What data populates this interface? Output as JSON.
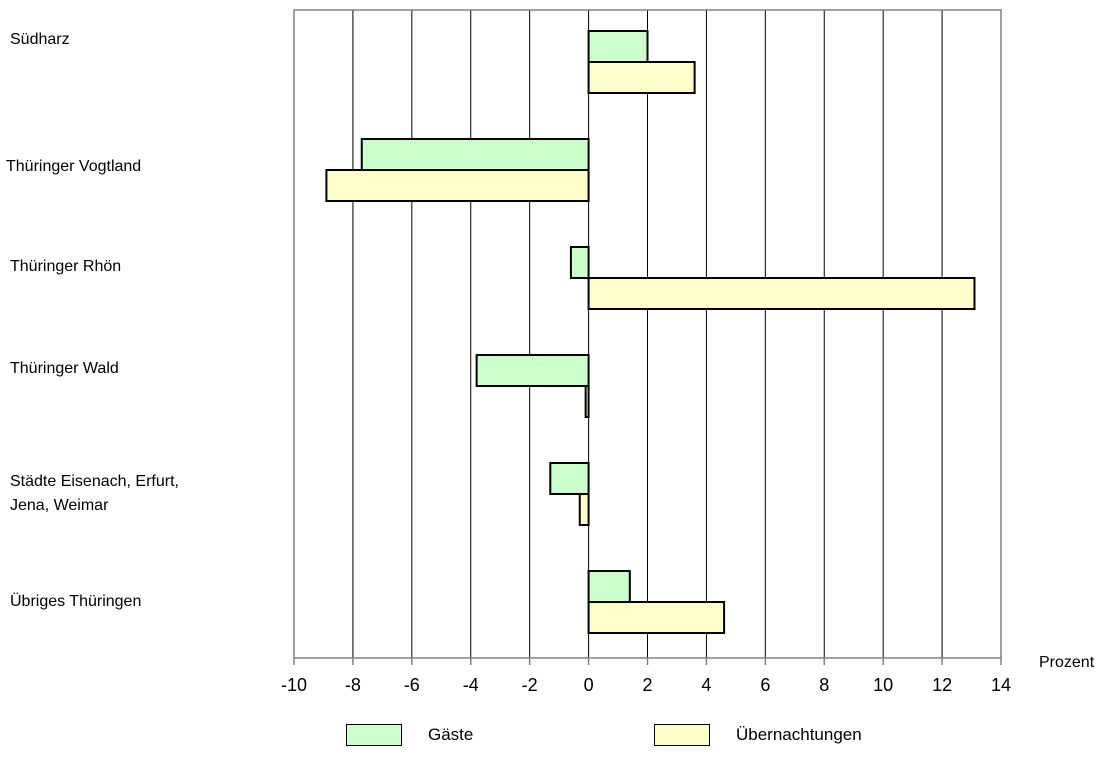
{
  "chart_data": {
    "type": "bar",
    "orientation": "horizontal",
    "categories": [
      "Südharz",
      "Thüringer Vogtland",
      "Thüringer Rhön",
      "Thüringer Wald",
      "Städte Eisenach, Erfurt,\nJena, Weimar",
      "Übriges Thüringen"
    ],
    "series": [
      {
        "name": "Gäste",
        "color": "#ccffcc",
        "values": [
          2.0,
          -7.7,
          -0.6,
          -3.8,
          -1.3,
          1.4
        ]
      },
      {
        "name": "Übernachtungen",
        "color": "#ffffcc",
        "values": [
          3.6,
          -8.9,
          13.1,
          -0.1,
          -0.3,
          4.6
        ]
      }
    ],
    "xlim": [
      -10,
      14
    ],
    "xticks": [
      "-10",
      "-8",
      "-6",
      "-4",
      "-2",
      "0",
      "2",
      "4",
      "6",
      "8",
      "10",
      "12",
      "14"
    ],
    "xlabel": "Prozent",
    "grid": "vertical",
    "legend_position": "bottom"
  }
}
